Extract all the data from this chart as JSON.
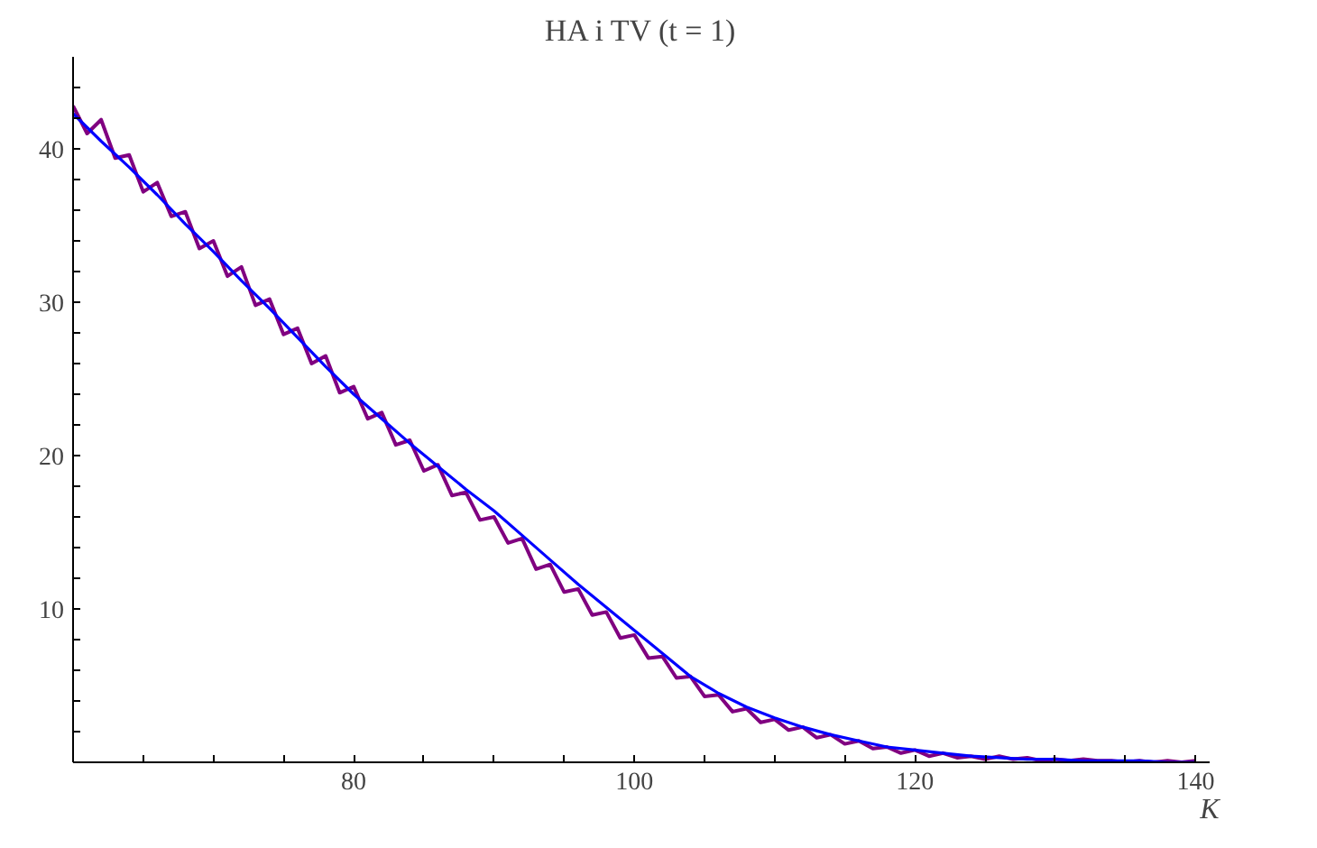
{
  "chart_data": {
    "type": "line",
    "title": "HA i TV (t = 1)",
    "xlabel": "K",
    "xlim": [
      60,
      141
    ],
    "ylim": [
      0,
      46
    ],
    "xticks": [
      {
        "value": 65,
        "label": null
      },
      {
        "value": 70,
        "label": null
      },
      {
        "value": 75,
        "label": null
      },
      80,
      {
        "value": 85,
        "label": null
      },
      {
        "value": 90,
        "label": null
      },
      {
        "value": 95,
        "label": null
      },
      100,
      {
        "value": 105,
        "label": null
      },
      {
        "value": 110,
        "label": null
      },
      {
        "value": 115,
        "label": null
      },
      120,
      {
        "value": 125,
        "label": null
      },
      {
        "value": 130,
        "label": null
      },
      {
        "value": 135,
        "label": null
      },
      140
    ],
    "yticks": [
      {
        "value": 2,
        "label": null
      },
      {
        "value": 4,
        "label": null
      },
      {
        "value": 6,
        "label": null
      },
      {
        "value": 8,
        "label": null
      },
      10,
      {
        "value": 12,
        "label": null
      },
      {
        "value": 14,
        "label": null
      },
      {
        "value": 16,
        "label": null
      },
      {
        "value": 18,
        "label": null
      },
      20,
      {
        "value": 22,
        "label": null
      },
      {
        "value": 24,
        "label": null
      },
      {
        "value": 26,
        "label": null
      },
      {
        "value": 28,
        "label": null
      },
      30,
      {
        "value": 32,
        "label": null
      },
      {
        "value": 34,
        "label": null
      },
      {
        "value": 36,
        "label": null
      },
      {
        "value": 38,
        "label": null
      },
      40,
      {
        "value": 42,
        "label": null
      },
      {
        "value": 44,
        "label": null
      }
    ],
    "grid": false,
    "marker": "none",
    "line_style": "solid",
    "series": [
      {
        "color": "#800080",
        "x": [
          60,
          61,
          62,
          63,
          64,
          65,
          66,
          67,
          68,
          69,
          70,
          71,
          72,
          73,
          74,
          75,
          76,
          77,
          78,
          79,
          80,
          81,
          82,
          83,
          84,
          85,
          86,
          87,
          88,
          89,
          90,
          91,
          92,
          93,
          94,
          95,
          96,
          97,
          98,
          99,
          100,
          101,
          102,
          103,
          104,
          105,
          106,
          107,
          108,
          109,
          110,
          111,
          112,
          113,
          114,
          115,
          116,
          117,
          118,
          119,
          120,
          121,
          122,
          123,
          124,
          125,
          126,
          127,
          128,
          129,
          130,
          131,
          132,
          133,
          134,
          135,
          136,
          137,
          138,
          139,
          140
        ],
        "values": [
          42.8,
          41.0,
          41.9,
          39.4,
          39.6,
          37.2,
          37.8,
          35.6,
          35.9,
          33.5,
          34.0,
          31.7,
          32.3,
          29.8,
          30.2,
          27.9,
          28.3,
          26.0,
          26.5,
          24.1,
          24.5,
          22.4,
          22.8,
          20.7,
          21.0,
          19.0,
          19.4,
          17.4,
          17.6,
          15.8,
          16.0,
          14.3,
          14.6,
          12.6,
          12.9,
          11.1,
          11.3,
          9.6,
          9.8,
          8.1,
          8.3,
          6.8,
          6.9,
          5.5,
          5.6,
          4.3,
          4.4,
          3.3,
          3.5,
          2.6,
          2.8,
          2.1,
          2.3,
          1.6,
          1.8,
          1.2,
          1.4,
          0.9,
          1.0,
          0.6,
          0.8,
          0.4,
          0.6,
          0.3,
          0.4,
          0.2,
          0.4,
          0.2,
          0.3,
          0.1,
          0.2,
          0.1,
          0.2,
          0.1,
          0.1,
          0.0,
          0.1,
          0.0,
          0.1,
          0.0,
          0.1
        ]
      },
      {
        "color": "#0000ff",
        "x": [
          60,
          62,
          64,
          66,
          68,
          70,
          72,
          74,
          76,
          78,
          80,
          82,
          84,
          86,
          88,
          90,
          92,
          94,
          96,
          98,
          100,
          102,
          104,
          106,
          108,
          110,
          112,
          114,
          116,
          118,
          120,
          122,
          124,
          126,
          128,
          130,
          132,
          134,
          136,
          138,
          140
        ],
        "values": [
          42.3,
          40.5,
          38.8,
          37.0,
          35.1,
          33.3,
          31.4,
          29.6,
          27.7,
          25.8,
          24.0,
          22.4,
          20.8,
          19.3,
          17.8,
          16.4,
          14.8,
          13.2,
          11.6,
          10.1,
          8.6,
          7.1,
          5.6,
          4.5,
          3.6,
          2.9,
          2.3,
          1.8,
          1.4,
          1.0,
          0.8,
          0.6,
          0.4,
          0.3,
          0.2,
          0.2,
          0.1,
          0.1,
          0.1,
          0.0,
          0.0
        ]
      }
    ]
  }
}
